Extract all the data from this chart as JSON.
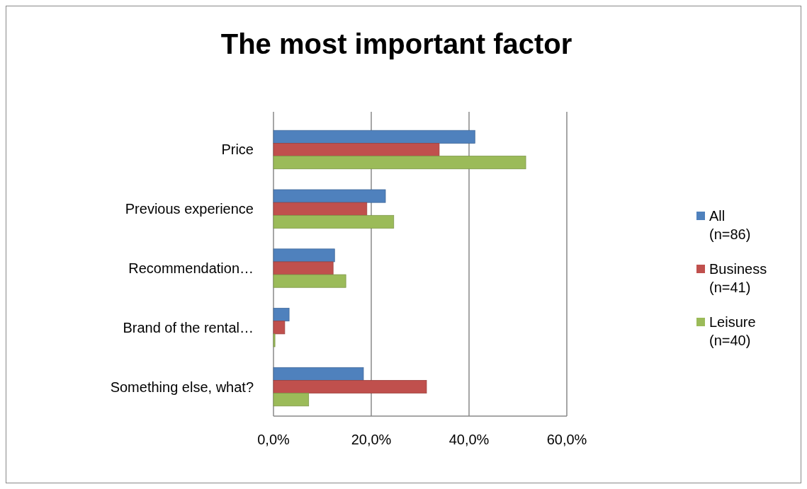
{
  "chart_data": {
    "type": "bar",
    "orientation": "horizontal",
    "title": "The most important factor",
    "categories": [
      "Price",
      "Previous experience",
      "Recommendation…",
      "Brand of the rental…",
      "Something else, what?"
    ],
    "series": [
      {
        "name": "All (n=86)",
        "color": "#4f81bd",
        "values": [
          0.412,
          0.229,
          0.125,
          0.032,
          0.184
        ]
      },
      {
        "name": "Business (n=41)",
        "color": "#c0504d",
        "values": [
          0.339,
          0.191,
          0.122,
          0.023,
          0.313
        ]
      },
      {
        "name": "Leisure (n=40)",
        "color": "#9bbb59",
        "values": [
          0.516,
          0.246,
          0.148,
          0.003,
          0.072
        ]
      }
    ],
    "xlim": [
      0,
      0.6
    ],
    "xticks": [
      {
        "value": 0,
        "label": "0,0%"
      },
      {
        "value": 0.2,
        "label": "20,0%"
      },
      {
        "value": 0.4,
        "label": "40,0%"
      },
      {
        "value": 0.6,
        "label": "60,0%"
      }
    ],
    "grid": "x",
    "legend": "right"
  }
}
